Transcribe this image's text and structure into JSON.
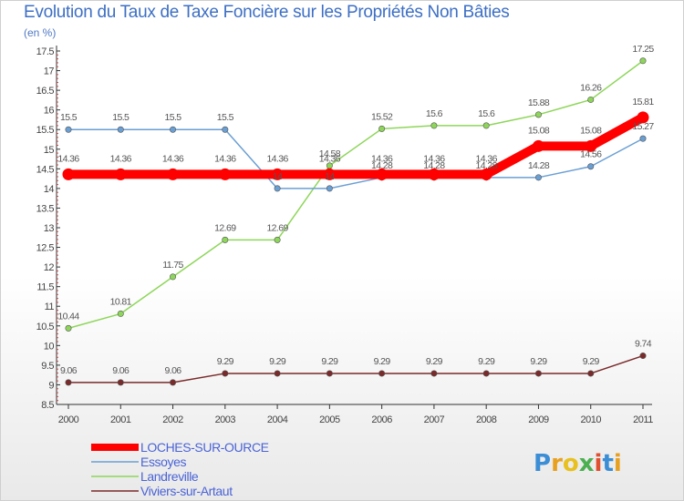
{
  "header": {
    "title": "Evolution du Taux de Taxe Foncière sur les Propriétés Non Bâties",
    "subtitle": "(en %)"
  },
  "brand": {
    "letters": [
      "P",
      "r",
      "o",
      "x",
      "i",
      "t",
      "i"
    ],
    "colors": [
      "#3b8ed6",
      "#e8a020",
      "#e8c020",
      "#4caf50",
      "#e05030",
      "#3b8ed6",
      "#e8a020"
    ]
  },
  "chart_data": {
    "type": "line",
    "title": "Evolution du Taux de Taxe Foncière sur les Propriétés Non Bâties",
    "ylabel": "(en %)",
    "xlabel": "",
    "x": [
      "2000",
      "2001",
      "2002",
      "2003",
      "2004",
      "2005",
      "2006",
      "2007",
      "2008",
      "2009",
      "2010",
      "2011"
    ],
    "ylim": [
      8.5,
      17.5
    ],
    "yticks": [
      "8.5",
      "9",
      "9.5",
      "10",
      "10.5",
      "11",
      "11.5",
      "12",
      "12.5",
      "13",
      "13.5",
      "14",
      "14.5",
      "15",
      "15.5",
      "16",
      "16.5",
      "17",
      "17.5"
    ],
    "grid": false,
    "legend": "bottom-left",
    "series": [
      {
        "name": "LOCHES-SUR-OURCE",
        "color": "#ff0000",
        "values": [
          14.36,
          14.36,
          14.36,
          14.36,
          14.36,
          14.36,
          14.36,
          14.36,
          14.36,
          15.08,
          15.08,
          15.81
        ],
        "labels": [
          "14.36",
          "14.36",
          "14.36",
          "14.36",
          "14.36",
          "14.36",
          "14.36",
          "14.36",
          "14.36",
          "15.08",
          "15.08",
          "15.81"
        ]
      },
      {
        "name": "Essoyes",
        "color": "#6a9fd4",
        "values": [
          15.5,
          15.5,
          15.5,
          15.5,
          14,
          14,
          14.28,
          14.28,
          14.28,
          14.28,
          14.56,
          15.27
        ],
        "labels": [
          "15.5",
          "15.5",
          "15.5",
          "15.5",
          "14",
          "14",
          "14.28",
          "14.28",
          "14.28",
          "14.28",
          "14.56",
          "15.27"
        ]
      },
      {
        "name": "Landreville",
        "color": "#8ed65a",
        "values": [
          10.44,
          10.81,
          11.75,
          12.69,
          12.69,
          14.58,
          15.52,
          15.6,
          15.6,
          15.88,
          16.26,
          17.25
        ],
        "labels": [
          "10.44",
          "10.81",
          "11.75",
          "12.69",
          "12.69",
          "14.58",
          "15.52",
          "15.6",
          "15.6",
          "15.88",
          "16.26",
          "17.25"
        ]
      },
      {
        "name": "Viviers-sur-Artaut",
        "color": "#7a2a2a",
        "values": [
          9.06,
          9.06,
          9.06,
          9.29,
          9.29,
          9.29,
          9.29,
          9.29,
          9.29,
          9.29,
          9.29,
          9.74
        ],
        "labels": [
          "9.06",
          "9.06",
          "9.06",
          "9.29",
          "9.29",
          "9.29",
          "9.29",
          "9.29",
          "9.29",
          "9.29",
          "9.29",
          "9.74"
        ]
      }
    ]
  }
}
